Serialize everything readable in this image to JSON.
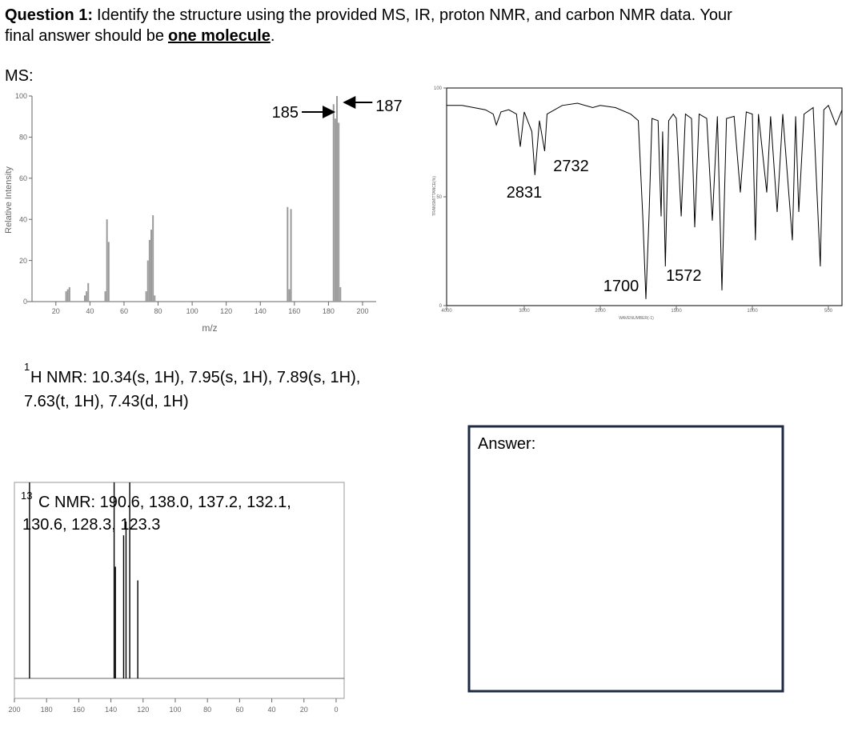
{
  "question": {
    "label": "Question 1:",
    "lines": [
      "Identify the structure using the provided MS, IR, proton NMR, and carbon NMR data. Your",
      "final answer should be"
    ],
    "emphasis": "one molecule",
    "end": "."
  },
  "ms_label": "MS:",
  "h_nmr": {
    "superscript": "1",
    "lines": [
      "H NMR: 10.34(s, 1H), 7.95(s, 1H), 7.89(s, 1H),",
      "7.63(t, 1H), 7.43(d, 1H)"
    ]
  },
  "c_nmr": {
    "superscript": "13",
    "lines": [
      "C NMR: 190.6, 138.0, 137.2, 132.1,",
      "130.6, 128.3, 123.3"
    ]
  },
  "answer_label": "Answer:",
  "chart_data": [
    {
      "type": "bar",
      "x_label": "m/z",
      "y_label": "Relative Intensity",
      "x": [
        26,
        27,
        28,
        37,
        38,
        39,
        49,
        50,
        51,
        73,
        74,
        75,
        76,
        77,
        78,
        156,
        157,
        158,
        183,
        184,
        185,
        186,
        187
      ],
      "values": [
        5,
        6,
        7,
        3,
        5,
        9,
        5,
        40,
        29,
        5,
        20,
        30,
        35,
        42,
        3,
        46,
        6,
        45,
        96,
        89,
        100,
        87,
        7
      ],
      "color": "#9a9a9a",
      "xlim": [
        6,
        208
      ],
      "ylim": [
        0,
        100
      ],
      "xticks": [
        20,
        40,
        60,
        80,
        100,
        120,
        140,
        160,
        180,
        200
      ],
      "yticks": [
        0,
        20,
        40,
        60,
        80,
        100
      ],
      "annotations": [
        185,
        187
      ]
    },
    {
      "type": "line",
      "x_label": "WAVENUMBER(-1)",
      "y_label": "TRANSMITTANCE(%)",
      "x": [
        4000,
        3800,
        3500,
        3400,
        3360,
        3300,
        3200,
        3100,
        3052,
        3000,
        2900,
        2860,
        2800,
        2732,
        2700,
        2500,
        2300,
        2100,
        2000,
        1900,
        1800,
        1750,
        1720,
        1700,
        1680,
        1660,
        1620,
        1600,
        1590,
        1572,
        1550,
        1520,
        1500,
        1468,
        1440,
        1400,
        1379,
        1350,
        1300,
        1263,
        1230,
        1200,
        1170,
        1120,
        1079,
        1040,
        1000,
        980,
        960,
        905,
        880,
        837,
        800,
        737,
        715,
        695,
        660,
        600,
        553,
        530,
        500,
        450,
        410
      ],
      "values": [
        92,
        92,
        90,
        88,
        83,
        89,
        90,
        88,
        73,
        89,
        80,
        60,
        85,
        71,
        88,
        92,
        93,
        91,
        92,
        91,
        88,
        85,
        40,
        3,
        40,
        86,
        85,
        41,
        80,
        18,
        85,
        88,
        86,
        41,
        88,
        86,
        36,
        88,
        86,
        39,
        87,
        7,
        86,
        87,
        52,
        89,
        88,
        30,
        88,
        52,
        87,
        43,
        88,
        30,
        87,
        43,
        88,
        91,
        18,
        90,
        92,
        83,
        90
      ],
      "color": "#000000",
      "xlim": [
        4000,
        410
      ],
      "ylim": [
        0,
        100
      ],
      "xticks": [
        4000,
        3000,
        2000,
        1500,
        1000,
        500
      ],
      "yticks": [
        0,
        50,
        100
      ],
      "annotations": [
        2831,
        2732,
        1700,
        1572
      ]
    },
    {
      "type": "bar",
      "x": [
        190.6,
        138.0,
        137.2,
        132.1,
        130.6,
        128.3,
        123.3
      ],
      "values": [
        100,
        100,
        57,
        73,
        80,
        100,
        50
      ],
      "color": "#000000",
      "xlim": [
        200,
        -5
      ],
      "ylim": [
        0,
        100
      ],
      "xticks": [
        200,
        180,
        160,
        140,
        120,
        100,
        80,
        60,
        40,
        20,
        0
      ]
    }
  ]
}
